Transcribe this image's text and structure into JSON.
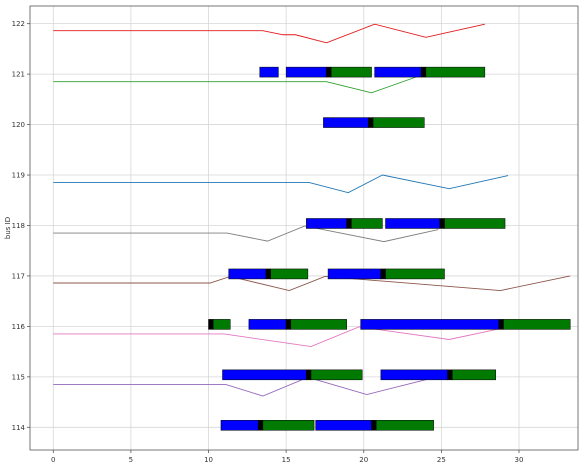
{
  "chart_data": {
    "type": "gantt-line",
    "xlabel": "",
    "ylabel": "bus ID",
    "xlim": [
      -1.5,
      33.8
    ],
    "ylim": [
      113.55,
      122.35
    ],
    "x_ticks": [
      0,
      5,
      10,
      15,
      20,
      25,
      30
    ],
    "y_ticks": [
      114,
      115,
      116,
      117,
      118,
      119,
      120,
      121,
      122
    ],
    "grid": true,
    "colors": {
      "primary": "#0000ff",
      "secondary": "#007a00",
      "marker": "#000000"
    },
    "series": [
      {
        "color": "#e41a1c",
        "points": [
          [
            0,
            121.86
          ],
          [
            13.5,
            121.86
          ],
          [
            14.8,
            121.78
          ],
          [
            15.6,
            121.78
          ],
          [
            17.6,
            121.62
          ],
          [
            20.7,
            121.99
          ],
          [
            24,
            121.73
          ],
          [
            27.8,
            121.99
          ]
        ]
      },
      {
        "color": "#2ca02c",
        "points": [
          [
            0,
            120.85
          ],
          [
            17.6,
            120.85
          ],
          [
            20.5,
            120.63
          ],
          [
            23.8,
            120.99
          ]
        ]
      },
      {
        "color": "#1f77b4",
        "points": [
          [
            0,
            118.85
          ],
          [
            16.5,
            118.85
          ],
          [
            19,
            118.65
          ],
          [
            21.2,
            119.0
          ],
          [
            25.5,
            118.73
          ],
          [
            29.3,
            118.99
          ]
        ]
      },
      {
        "color": "#7f7f7f",
        "points": [
          [
            0,
            117.85
          ],
          [
            11.2,
            117.85
          ],
          [
            13.8,
            117.69
          ],
          [
            16.2,
            117.99
          ],
          [
            21.3,
            117.68
          ],
          [
            24.8,
            117.92
          ]
        ]
      },
      {
        "color": "#8c564b",
        "points": [
          [
            0,
            116.86
          ],
          [
            10.1,
            116.86
          ],
          [
            11.4,
            116.99
          ],
          [
            15.2,
            116.71
          ],
          [
            17.5,
            116.99
          ],
          [
            28.8,
            116.71
          ],
          [
            33.3,
            117.0
          ]
        ]
      },
      {
        "color": "#e377c2",
        "points": [
          [
            0,
            115.85
          ],
          [
            11.0,
            115.85
          ],
          [
            16.6,
            115.6
          ],
          [
            19.7,
            115.99
          ],
          [
            25.5,
            115.74
          ],
          [
            29.3,
            115.99
          ]
        ]
      },
      {
        "color": "#9467bd",
        "points": [
          [
            0,
            114.85
          ],
          [
            11.1,
            114.85
          ],
          [
            13.5,
            114.62
          ],
          [
            16.4,
            114.99
          ],
          [
            20.2,
            114.65
          ],
          [
            24.6,
            114.99
          ]
        ]
      }
    ],
    "bars": [
      {
        "y": 121,
        "kind": "primary",
        "start": 13.3,
        "end": 14.5
      },
      {
        "y": 121,
        "kind": "primary",
        "start": 15.0,
        "end": 17.6
      },
      {
        "y": 121,
        "kind": "marker",
        "start": 17.6,
        "end": 17.9
      },
      {
        "y": 121,
        "kind": "secondary",
        "start": 17.9,
        "end": 20.5
      },
      {
        "y": 121,
        "kind": "primary",
        "start": 20.7,
        "end": 23.7
      },
      {
        "y": 121,
        "kind": "marker",
        "start": 23.7,
        "end": 24.0
      },
      {
        "y": 121,
        "kind": "secondary",
        "start": 24.0,
        "end": 27.8
      },
      {
        "y": 120,
        "kind": "primary",
        "start": 17.4,
        "end": 20.3
      },
      {
        "y": 120,
        "kind": "marker",
        "start": 20.3,
        "end": 20.6
      },
      {
        "y": 120,
        "kind": "secondary",
        "start": 20.6,
        "end": 23.9
      },
      {
        "y": 118,
        "kind": "primary",
        "start": 16.3,
        "end": 18.9
      },
      {
        "y": 118,
        "kind": "marker",
        "start": 18.9,
        "end": 19.2
      },
      {
        "y": 118,
        "kind": "secondary",
        "start": 19.2,
        "end": 21.2
      },
      {
        "y": 118,
        "kind": "primary",
        "start": 21.4,
        "end": 24.9
      },
      {
        "y": 118,
        "kind": "marker",
        "start": 24.9,
        "end": 25.2
      },
      {
        "y": 118,
        "kind": "secondary",
        "start": 25.2,
        "end": 29.1
      },
      {
        "y": 117,
        "kind": "primary",
        "start": 11.3,
        "end": 13.7
      },
      {
        "y": 117,
        "kind": "marker",
        "start": 13.7,
        "end": 14.0
      },
      {
        "y": 117,
        "kind": "secondary",
        "start": 14.0,
        "end": 16.4
      },
      {
        "y": 117,
        "kind": "primary",
        "start": 17.7,
        "end": 21.1
      },
      {
        "y": 117,
        "kind": "marker",
        "start": 21.1,
        "end": 21.4
      },
      {
        "y": 117,
        "kind": "secondary",
        "start": 21.4,
        "end": 25.2
      },
      {
        "y": 116,
        "kind": "marker",
        "start": 10.0,
        "end": 10.3
      },
      {
        "y": 116,
        "kind": "secondary",
        "start": 10.3,
        "end": 11.4
      },
      {
        "y": 116,
        "kind": "primary",
        "start": 12.6,
        "end": 15.0
      },
      {
        "y": 116,
        "kind": "marker",
        "start": 15.0,
        "end": 15.3
      },
      {
        "y": 116,
        "kind": "secondary",
        "start": 15.3,
        "end": 18.9
      },
      {
        "y": 116,
        "kind": "primary",
        "start": 19.8,
        "end": 28.7
      },
      {
        "y": 116,
        "kind": "marker",
        "start": 28.7,
        "end": 29.0
      },
      {
        "y": 116,
        "kind": "secondary",
        "start": 29.0,
        "end": 33.3
      },
      {
        "y": 115,
        "kind": "primary",
        "start": 10.9,
        "end": 16.3
      },
      {
        "y": 115,
        "kind": "marker",
        "start": 16.3,
        "end": 16.6
      },
      {
        "y": 115,
        "kind": "secondary",
        "start": 16.6,
        "end": 19.9
      },
      {
        "y": 115,
        "kind": "primary",
        "start": 21.1,
        "end": 25.4
      },
      {
        "y": 115,
        "kind": "marker",
        "start": 25.4,
        "end": 25.7
      },
      {
        "y": 115,
        "kind": "secondary",
        "start": 25.7,
        "end": 28.5
      },
      {
        "y": 114,
        "kind": "primary",
        "start": 10.8,
        "end": 13.2
      },
      {
        "y": 114,
        "kind": "marker",
        "start": 13.2,
        "end": 13.5
      },
      {
        "y": 114,
        "kind": "secondary",
        "start": 13.5,
        "end": 16.8
      },
      {
        "y": 114,
        "kind": "primary",
        "start": 16.9,
        "end": 20.5
      },
      {
        "y": 114,
        "kind": "marker",
        "start": 20.5,
        "end": 20.8
      },
      {
        "y": 114,
        "kind": "secondary",
        "start": 20.8,
        "end": 24.5
      }
    ]
  }
}
